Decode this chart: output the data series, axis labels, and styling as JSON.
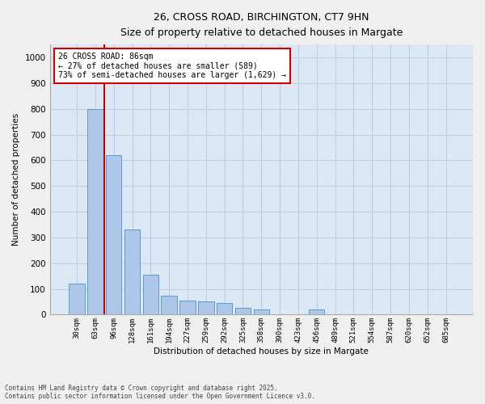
{
  "title1": "26, CROSS ROAD, BIRCHINGTON, CT7 9HN",
  "title2": "Size of property relative to detached houses in Margate",
  "xlabel": "Distribution of detached houses by size in Margate",
  "ylabel": "Number of detached properties",
  "annotation_line1": "26 CROSS ROAD: 86sqm",
  "annotation_line2": "← 27% of detached houses are smaller (589)",
  "annotation_line3": "73% of semi-detached houses are larger (1,629) →",
  "footer1": "Contains HM Land Registry data © Crown copyright and database right 2025.",
  "footer2": "Contains public sector information licensed under the Open Government Licence v3.0.",
  "categories": [
    "30sqm",
    "63sqm",
    "96sqm",
    "128sqm",
    "161sqm",
    "194sqm",
    "227sqm",
    "259sqm",
    "292sqm",
    "325sqm",
    "358sqm",
    "390sqm",
    "423sqm",
    "456sqm",
    "489sqm",
    "521sqm",
    "554sqm",
    "587sqm",
    "620sqm",
    "652sqm",
    "685sqm"
  ],
  "bar_heights": [
    120,
    800,
    620,
    330,
    155,
    75,
    55,
    50,
    45,
    25,
    20,
    0,
    0,
    20,
    0,
    0,
    0,
    0,
    0,
    0,
    0
  ],
  "bar_color": "#aec6e8",
  "bar_edge_color": "#5b9bd5",
  "vline_x_index": 1.5,
  "vline_color": "#cc0000",
  "annotation_box_color": "#cc0000",
  "ylim": [
    0,
    1050
  ],
  "yticks": [
    0,
    100,
    200,
    300,
    400,
    500,
    600,
    700,
    800,
    900,
    1000
  ],
  "grid_color": "#c0cfe0",
  "plot_bg_color": "#dde8f5",
  "fig_bg_color": "#f0f0f0"
}
